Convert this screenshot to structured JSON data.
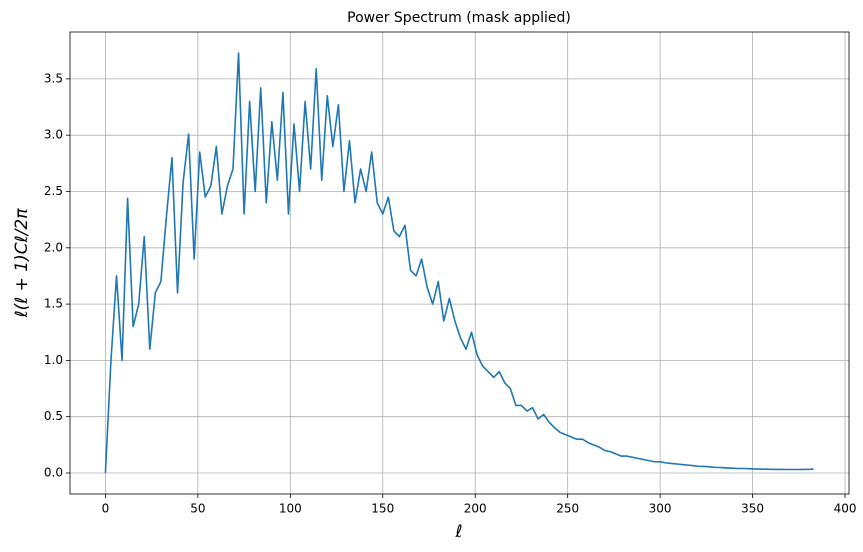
{
  "chart_data": {
    "type": "line",
    "title": "Power Spectrum (mask applied)",
    "xlabel": "ℓ",
    "ylabel": "ℓ(ℓ + 1)Cℓ/2π",
    "x": [
      0,
      3,
      6,
      9,
      12,
      15,
      18,
      21,
      24,
      27,
      30,
      33,
      36,
      39,
      42,
      45,
      48,
      51,
      54,
      57,
      60,
      63,
      66,
      69,
      72,
      75,
      78,
      81,
      84,
      87,
      90,
      93,
      96,
      99,
      102,
      105,
      108,
      111,
      114,
      117,
      120,
      123,
      126,
      129,
      132,
      135,
      138,
      141,
      144,
      147,
      150,
      153,
      156,
      159,
      162,
      165,
      168,
      171,
      174,
      177,
      180,
      183,
      186,
      189,
      192,
      195,
      198,
      201,
      204,
      207,
      210,
      213,
      216,
      219,
      222,
      225,
      228,
      231,
      234,
      237,
      240,
      243,
      246,
      249,
      252,
      255,
      258,
      261,
      264,
      267,
      270,
      273,
      276,
      279,
      282,
      285,
      288,
      291,
      294,
      297,
      300,
      303,
      306,
      309,
      312,
      315,
      318,
      321,
      324,
      327,
      330,
      333,
      336,
      339,
      342,
      345,
      348,
      351,
      354,
      357,
      360,
      363,
      366,
      369,
      372,
      375,
      378,
      381,
      383
    ],
    "series": [
      {
        "name": "power spectrum",
        "color": "#1f77b4",
        "values": [
          0.0,
          1.0,
          1.75,
          1.0,
          2.44,
          1.3,
          1.5,
          2.1,
          1.1,
          1.6,
          1.7,
          2.28,
          2.8,
          1.6,
          2.58,
          3.01,
          1.9,
          2.85,
          2.45,
          2.55,
          2.9,
          2.3,
          2.55,
          2.7,
          3.73,
          2.3,
          3.3,
          2.5,
          3.42,
          2.4,
          3.12,
          2.6,
          3.38,
          2.3,
          3.1,
          2.5,
          3.3,
          2.7,
          3.59,
          2.6,
          3.35,
          2.9,
          3.27,
          2.5,
          2.95,
          2.4,
          2.7,
          2.5,
          2.85,
          2.4,
          2.3,
          2.45,
          2.15,
          2.1,
          2.2,
          1.8,
          1.75,
          1.9,
          1.65,
          1.5,
          1.7,
          1.35,
          1.55,
          1.35,
          1.2,
          1.1,
          1.25,
          1.05,
          0.95,
          0.9,
          0.85,
          0.9,
          0.8,
          0.75,
          0.6,
          0.6,
          0.55,
          0.58,
          0.48,
          0.52,
          0.45,
          0.4,
          0.36,
          0.34,
          0.32,
          0.3,
          0.3,
          0.27,
          0.25,
          0.23,
          0.2,
          0.19,
          0.17,
          0.15,
          0.15,
          0.14,
          0.13,
          0.12,
          0.11,
          0.1,
          0.1,
          0.09,
          0.085,
          0.08,
          0.075,
          0.07,
          0.065,
          0.06,
          0.058,
          0.055,
          0.05,
          0.048,
          0.045,
          0.043,
          0.04,
          0.04,
          0.038,
          0.036,
          0.035,
          0.034,
          0.033,
          0.032,
          0.032,
          0.031,
          0.031,
          0.031,
          0.032,
          0.033,
          0.035
        ]
      }
    ],
    "xlim": [
      -19.15,
      402.15
    ],
    "xticks": [
      0,
      50,
      100,
      150,
      200,
      250,
      300,
      350,
      400
    ],
    "ylim": [
      -0.1865,
      3.9165
    ],
    "yticks": [
      {
        "value": 0,
        "label": "0.0"
      },
      0.5,
      {
        "value": 1,
        "label": "1.0"
      },
      1.5,
      {
        "value": 2,
        "label": "2.0"
      },
      2.5,
      {
        "value": 3,
        "label": "3.0"
      },
      3.5
    ],
    "grid": true
  }
}
